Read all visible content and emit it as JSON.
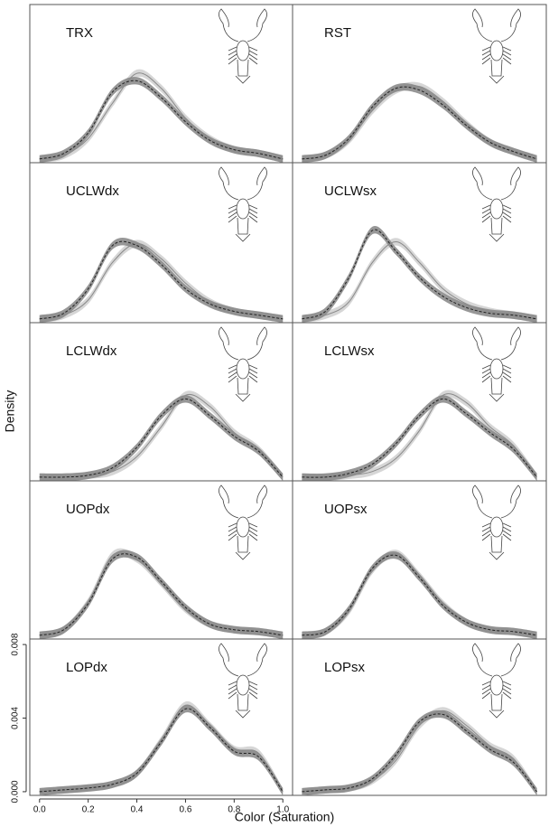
{
  "chart_data": [
    {
      "type": "line",
      "title": "TRX",
      "x": [
        0,
        0.1,
        0.2,
        0.3,
        0.4,
        0.5,
        0.6,
        0.7,
        0.8,
        0.9,
        1
      ],
      "xlim": [
        -0.04,
        1.04
      ],
      "ylim": [
        -0.0002,
        0.0083
      ],
      "series": [
        {
          "color": "#8a8a8a",
          "band_color": "#cfcfcf",
          "dashed": false,
          "band": 0.0002,
          "values": [
            0,
            0.0002,
            0.0011,
            0.003,
            0.0046,
            0.0038,
            0.0022,
            0.0011,
            0.0005,
            0.0003,
            0
          ]
        },
        {
          "color": "#222222",
          "band_color": "#858585",
          "dashed": true,
          "band": 0.0002,
          "values": [
            0,
            0.0003,
            0.0014,
            0.0036,
            0.0042,
            0.0033,
            0.002,
            0.001,
            0.0005,
            0.0003,
            0
          ]
        }
      ]
    },
    {
      "type": "line",
      "title": "RST",
      "x": [
        0,
        0.1,
        0.2,
        0.3,
        0.4,
        0.5,
        0.6,
        0.7,
        0.8,
        0.9,
        1
      ],
      "xlim": [
        -0.04,
        1.04
      ],
      "ylim": [
        -0.0002,
        0.0083
      ],
      "series": [
        {
          "color": "#8a8a8a",
          "band_color": "#cfcfcf",
          "dashed": false,
          "band": 0.0002,
          "values": [
            0,
            0.0002,
            0.001,
            0.0026,
            0.0037,
            0.0039,
            0.0031,
            0.0019,
            0.0009,
            0.0004,
            0
          ]
        },
        {
          "color": "#222222",
          "band_color": "#858585",
          "dashed": true,
          "band": 0.0002,
          "values": [
            0,
            0.0002,
            0.0011,
            0.0028,
            0.0038,
            0.0037,
            0.0029,
            0.0018,
            0.0009,
            0.0004,
            0
          ]
        }
      ]
    },
    {
      "type": "line",
      "title": "UCLWdx",
      "x": [
        0,
        0.1,
        0.2,
        0.3,
        0.4,
        0.5,
        0.6,
        0.7,
        0.8,
        0.9,
        1
      ],
      "xlim": [
        -0.04,
        1.04
      ],
      "ylim": [
        -0.0002,
        0.0083
      ],
      "series": [
        {
          "color": "#8a8a8a",
          "band_color": "#cfcfcf",
          "dashed": false,
          "band": 0.0002,
          "values": [
            0,
            0.0002,
            0.001,
            0.003,
            0.004,
            0.0032,
            0.0019,
            0.0009,
            0.0004,
            0.0002,
            0
          ]
        },
        {
          "color": "#222222",
          "band_color": "#858585",
          "dashed": true,
          "band": 0.0002,
          "values": [
            0,
            0.0003,
            0.0016,
            0.0039,
            0.0039,
            0.0029,
            0.0016,
            0.0008,
            0.0004,
            0.0002,
            0
          ]
        }
      ]
    },
    {
      "type": "line",
      "title": "UCLWsx",
      "x": [
        0,
        0.1,
        0.2,
        0.3,
        0.4,
        0.5,
        0.6,
        0.7,
        0.8,
        0.9,
        1
      ],
      "xlim": [
        -0.04,
        1.04
      ],
      "ylim": [
        -0.0002,
        0.0083
      ],
      "series": [
        {
          "color": "#8a8a8a",
          "band_color": "#cfcfcf",
          "dashed": false,
          "band": 0.0002,
          "values": [
            0,
            0.0002,
            0.0009,
            0.003,
            0.0041,
            0.003,
            0.0016,
            0.0008,
            0.0004,
            0.0002,
            0
          ]
        },
        {
          "color": "#222222",
          "band_color": "#858585",
          "dashed": true,
          "band": 0.0002,
          "values": [
            0,
            0.0004,
            0.0022,
            0.0047,
            0.0036,
            0.0022,
            0.0012,
            0.0006,
            0.0003,
            0.0002,
            0
          ]
        }
      ]
    },
    {
      "type": "line",
      "title": "LCLWdx",
      "x": [
        0,
        0.1,
        0.2,
        0.3,
        0.4,
        0.5,
        0.6,
        0.7,
        0.8,
        0.9,
        1
      ],
      "xlim": [
        -0.04,
        1.04
      ],
      "ylim": [
        -0.0002,
        0.0083
      ],
      "series": [
        {
          "color": "#8a8a8a",
          "band_color": "#cfcfcf",
          "dashed": false,
          "band": 0.0002,
          "values": [
            0,
            0,
            0.0001,
            0.0003,
            0.0011,
            0.0027,
            0.0044,
            0.0038,
            0.0024,
            0.0015,
            0
          ]
        },
        {
          "color": "#222222",
          "band_color": "#858585",
          "dashed": true,
          "band": 0.0002,
          "values": [
            0,
            0,
            0.0001,
            0.0005,
            0.0016,
            0.0033,
            0.0042,
            0.0033,
            0.0022,
            0.0014,
            0
          ]
        }
      ]
    },
    {
      "type": "line",
      "title": "LCLWsx",
      "x": [
        0,
        0.1,
        0.2,
        0.3,
        0.4,
        0.5,
        0.6,
        0.7,
        0.8,
        0.9,
        1
      ],
      "xlim": [
        -0.04,
        1.04
      ],
      "ylim": [
        -0.0002,
        0.0083
      ],
      "series": [
        {
          "color": "#8a8a8a",
          "band_color": "#cfcfcf",
          "dashed": false,
          "band": 0.0002,
          "values": [
            0,
            0,
            0.0001,
            0.0003,
            0.001,
            0.0025,
            0.0044,
            0.004,
            0.0027,
            0.0017,
            0
          ]
        },
        {
          "color": "#222222",
          "band_color": "#858585",
          "dashed": true,
          "band": 0.0002,
          "values": [
            0,
            0,
            0.0002,
            0.0007,
            0.0018,
            0.0033,
            0.0042,
            0.0034,
            0.0024,
            0.0015,
            0
          ]
        }
      ]
    },
    {
      "type": "line",
      "title": "UOPdx",
      "x": [
        0,
        0.1,
        0.2,
        0.3,
        0.4,
        0.5,
        0.6,
        0.7,
        0.8,
        0.9,
        1
      ],
      "xlim": [
        -0.04,
        1.04
      ],
      "ylim": [
        -0.0002,
        0.0083
      ],
      "series": [
        {
          "color": "#8a8a8a",
          "band_color": "#cfcfcf",
          "dashed": false,
          "band": 0.0002,
          "values": [
            0,
            0.0003,
            0.0018,
            0.0043,
            0.0041,
            0.0028,
            0.0014,
            0.0006,
            0.0003,
            0.0002,
            0
          ]
        },
        {
          "color": "#222222",
          "band_color": "#858585",
          "dashed": true,
          "band": 0.0002,
          "values": [
            0,
            0.0003,
            0.0017,
            0.0041,
            0.0042,
            0.0029,
            0.0015,
            0.0006,
            0.0003,
            0.0002,
            0
          ]
        }
      ]
    },
    {
      "type": "line",
      "title": "UOPsx",
      "x": [
        0,
        0.1,
        0.2,
        0.3,
        0.4,
        0.5,
        0.6,
        0.7,
        0.8,
        0.9,
        1
      ],
      "xlim": [
        -0.04,
        1.04
      ],
      "ylim": [
        -0.0002,
        0.0083
      ],
      "series": [
        {
          "color": "#8a8a8a",
          "band_color": "#cfcfcf",
          "dashed": false,
          "band": 0.0002,
          "values": [
            0,
            0.0002,
            0.0013,
            0.0035,
            0.0044,
            0.0032,
            0.0017,
            0.0007,
            0.0003,
            0.0002,
            0
          ]
        },
        {
          "color": "#222222",
          "band_color": "#858585",
          "dashed": true,
          "band": 0.0002,
          "values": [
            0,
            0.0002,
            0.0014,
            0.0036,
            0.0043,
            0.0031,
            0.0016,
            0.0007,
            0.0003,
            0.0002,
            0
          ]
        }
      ]
    },
    {
      "type": "line",
      "title": "LOPdx",
      "x": [
        0,
        0.1,
        0.2,
        0.3,
        0.4,
        0.5,
        0.6,
        0.7,
        0.8,
        0.9,
        1
      ],
      "xlim": [
        -0.04,
        1.04
      ],
      "ylim": [
        -0.0002,
        0.0083
      ],
      "xlabel": "Color (Saturation)",
      "ylabel": "Density",
      "xticks": [
        {
          "value": 0,
          "label": "0.0"
        },
        {
          "value": 0.2,
          "label": "0.2"
        },
        {
          "value": 0.4,
          "label": "0.4"
        },
        {
          "value": 0.6,
          "label": "0.6"
        },
        {
          "value": 0.8,
          "label": "0.8"
        },
        {
          "value": 1,
          "label": "1.0"
        }
      ],
      "yticks": [
        {
          "value": 0,
          "label": "0.000"
        },
        {
          "value": 0.004,
          "label": "0.004"
        },
        {
          "value": 0.008,
          "label": "0.008"
        }
      ],
      "series": [
        {
          "color": "#8a8a8a",
          "band_color": "#cfcfcf",
          "dashed": false,
          "band": 0.0002,
          "values": [
            0,
            0.0001,
            0.0002,
            0.0004,
            0.001,
            0.0028,
            0.0047,
            0.0036,
            0.0023,
            0.0021,
            0
          ]
        },
        {
          "color": "#222222",
          "band_color": "#858585",
          "dashed": true,
          "band": 0.0002,
          "values": [
            0,
            0.0001,
            0.0002,
            0.0004,
            0.001,
            0.0027,
            0.0045,
            0.0035,
            0.0022,
            0.0019,
            0
          ]
        }
      ]
    },
    {
      "type": "line",
      "title": "LOPsx",
      "x": [
        0,
        0.1,
        0.2,
        0.3,
        0.4,
        0.5,
        0.6,
        0.7,
        0.8,
        0.9,
        1
      ],
      "xlim": [
        -0.04,
        1.04
      ],
      "ylim": [
        -0.0002,
        0.0083
      ],
      "series": [
        {
          "color": "#8a8a8a",
          "band_color": "#cfcfcf",
          "dashed": false,
          "band": 0.0002,
          "values": [
            0,
            0.0001,
            0.0002,
            0.0006,
            0.0017,
            0.0036,
            0.0044,
            0.0036,
            0.0025,
            0.0018,
            0
          ]
        },
        {
          "color": "#222222",
          "band_color": "#858585",
          "dashed": true,
          "band": 0.0002,
          "values": [
            0,
            0.0001,
            0.0002,
            0.0007,
            0.002,
            0.0038,
            0.0042,
            0.0033,
            0.0023,
            0.0016,
            0
          ]
        }
      ]
    }
  ]
}
